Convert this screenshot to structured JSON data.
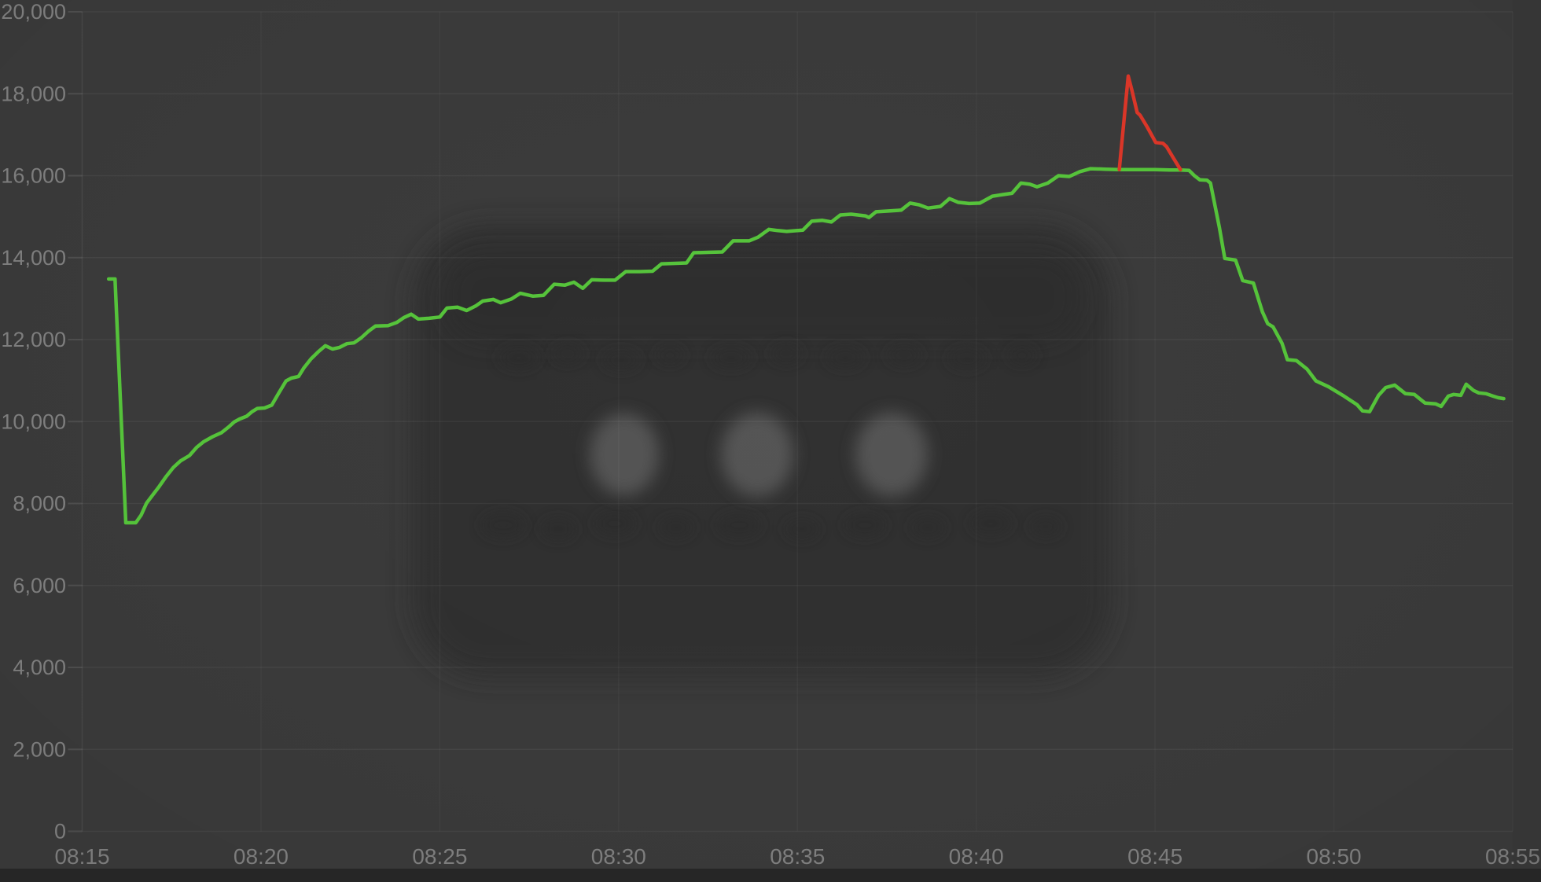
{
  "chart_data": {
    "type": "line",
    "title": "",
    "legend": "none",
    "grid": true,
    "x_axis": {
      "labels": [
        "08:15",
        "08:20",
        "08:25",
        "08:30",
        "08:35",
        "08:40",
        "08:45",
        "08:50",
        "08:55"
      ],
      "tick_minutes": [
        0,
        5,
        10,
        15,
        20,
        25,
        30,
        35,
        40
      ],
      "range_minutes": [
        0,
        40
      ]
    },
    "y_axis": {
      "tick_labels": [
        "0",
        "2,000",
        "4,000",
        "6,000",
        "8,000",
        "10,000",
        "12,000",
        "14,000",
        "16,000",
        "18,000",
        "20,000"
      ],
      "tick_values": [
        0,
        2000,
        4000,
        6000,
        8000,
        10000,
        12000,
        14000,
        16000,
        18000,
        20000
      ],
      "range": [
        0,
        20000
      ]
    },
    "series": [
      {
        "name": "primary-green",
        "color": "#55c33a",
        "points": [
          [
            0.74,
            13480
          ],
          [
            0.92,
            13480
          ],
          [
            1.22,
            7530
          ],
          [
            1.5,
            7530
          ],
          [
            1.65,
            7720
          ],
          [
            1.8,
            8010
          ],
          [
            2.0,
            8240
          ],
          [
            2.15,
            8410
          ],
          [
            2.35,
            8660
          ],
          [
            2.55,
            8880
          ],
          [
            2.75,
            9040
          ],
          [
            3.0,
            9170
          ],
          [
            3.2,
            9370
          ],
          [
            3.4,
            9510
          ],
          [
            3.65,
            9630
          ],
          [
            3.9,
            9730
          ],
          [
            4.1,
            9870
          ],
          [
            4.25,
            9990
          ],
          [
            4.4,
            10060
          ],
          [
            4.6,
            10130
          ],
          [
            4.75,
            10240
          ],
          [
            4.9,
            10320
          ],
          [
            5.1,
            10330
          ],
          [
            5.3,
            10400
          ],
          [
            5.5,
            10700
          ],
          [
            5.7,
            10990
          ],
          [
            5.85,
            11060
          ],
          [
            6.05,
            11100
          ],
          [
            6.2,
            11310
          ],
          [
            6.4,
            11530
          ],
          [
            6.6,
            11700
          ],
          [
            6.8,
            11850
          ],
          [
            7.0,
            11770
          ],
          [
            7.2,
            11810
          ],
          [
            7.4,
            11900
          ],
          [
            7.6,
            11920
          ],
          [
            7.8,
            12040
          ],
          [
            8.0,
            12200
          ],
          [
            8.2,
            12330
          ],
          [
            8.55,
            12340
          ],
          [
            8.8,
            12420
          ],
          [
            9.0,
            12540
          ],
          [
            9.2,
            12620
          ],
          [
            9.4,
            12500
          ],
          [
            9.7,
            12520
          ],
          [
            10.0,
            12550
          ],
          [
            10.2,
            12770
          ],
          [
            10.5,
            12790
          ],
          [
            10.75,
            12710
          ],
          [
            11.0,
            12820
          ],
          [
            11.2,
            12940
          ],
          [
            11.5,
            12980
          ],
          [
            11.7,
            12900
          ],
          [
            12.0,
            12990
          ],
          [
            12.25,
            13130
          ],
          [
            12.6,
            13060
          ],
          [
            12.9,
            13080
          ],
          [
            13.2,
            13350
          ],
          [
            13.5,
            13330
          ],
          [
            13.75,
            13400
          ],
          [
            14.0,
            13250
          ],
          [
            14.25,
            13460
          ],
          [
            14.6,
            13450
          ],
          [
            14.9,
            13450
          ],
          [
            15.2,
            13660
          ],
          [
            15.6,
            13660
          ],
          [
            15.95,
            13670
          ],
          [
            16.2,
            13850
          ],
          [
            16.6,
            13860
          ],
          [
            16.9,
            13870
          ],
          [
            17.1,
            14120
          ],
          [
            17.5,
            14130
          ],
          [
            17.9,
            14140
          ],
          [
            18.2,
            14410
          ],
          [
            18.65,
            14410
          ],
          [
            18.9,
            14500
          ],
          [
            19.2,
            14690
          ],
          [
            19.45,
            14660
          ],
          [
            19.7,
            14640
          ],
          [
            20.0,
            14660
          ],
          [
            20.15,
            14670
          ],
          [
            20.4,
            14890
          ],
          [
            20.7,
            14910
          ],
          [
            20.95,
            14870
          ],
          [
            21.2,
            15040
          ],
          [
            21.5,
            15060
          ],
          [
            21.9,
            15020
          ],
          [
            22.0,
            14980
          ],
          [
            22.2,
            15120
          ],
          [
            22.6,
            15140
          ],
          [
            22.9,
            15160
          ],
          [
            23.15,
            15330
          ],
          [
            23.4,
            15290
          ],
          [
            23.65,
            15210
          ],
          [
            24.0,
            15250
          ],
          [
            24.25,
            15440
          ],
          [
            24.5,
            15350
          ],
          [
            24.8,
            15320
          ],
          [
            25.1,
            15330
          ],
          [
            25.45,
            15500
          ],
          [
            25.75,
            15540
          ],
          [
            26.0,
            15570
          ],
          [
            26.25,
            15820
          ],
          [
            26.5,
            15790
          ],
          [
            26.7,
            15730
          ],
          [
            27.0,
            15820
          ],
          [
            27.3,
            16000
          ],
          [
            27.6,
            15980
          ],
          [
            27.9,
            16100
          ],
          [
            28.2,
            16170
          ],
          [
            28.6,
            16160
          ],
          [
            29.0,
            16150
          ],
          [
            29.5,
            16150
          ],
          [
            30.0,
            16150
          ],
          [
            30.4,
            16140
          ],
          [
            30.7,
            16140
          ],
          [
            30.95,
            16130
          ],
          [
            31.1,
            16000
          ],
          [
            31.25,
            15900
          ],
          [
            31.45,
            15890
          ],
          [
            31.55,
            15820
          ],
          [
            31.8,
            14730
          ],
          [
            31.95,
            13980
          ],
          [
            32.25,
            13940
          ],
          [
            32.45,
            13440
          ],
          [
            32.75,
            13380
          ],
          [
            33.0,
            12680
          ],
          [
            33.15,
            12390
          ],
          [
            33.3,
            12310
          ],
          [
            33.55,
            11910
          ],
          [
            33.7,
            11510
          ],
          [
            33.95,
            11490
          ],
          [
            34.25,
            11280
          ],
          [
            34.5,
            10990
          ],
          [
            34.85,
            10850
          ],
          [
            35.25,
            10640
          ],
          [
            35.65,
            10410
          ],
          [
            35.8,
            10260
          ],
          [
            36.0,
            10240
          ],
          [
            36.25,
            10640
          ],
          [
            36.45,
            10830
          ],
          [
            36.7,
            10890
          ],
          [
            37.0,
            10680
          ],
          [
            37.25,
            10660
          ],
          [
            37.55,
            10450
          ],
          [
            37.85,
            10430
          ],
          [
            38.0,
            10370
          ],
          [
            38.2,
            10620
          ],
          [
            38.35,
            10660
          ],
          [
            38.55,
            10640
          ],
          [
            38.7,
            10910
          ],
          [
            38.9,
            10760
          ],
          [
            39.05,
            10700
          ],
          [
            39.25,
            10680
          ],
          [
            39.45,
            10620
          ],
          [
            39.6,
            10580
          ],
          [
            39.75,
            10560
          ]
        ]
      },
      {
        "name": "spike-red",
        "color": "#da3628",
        "points": [
          [
            29.0,
            16150
          ],
          [
            29.25,
            18430
          ],
          [
            29.35,
            18090
          ],
          [
            29.5,
            17540
          ],
          [
            29.58,
            17480
          ],
          [
            29.78,
            17190
          ],
          [
            30.02,
            16810
          ],
          [
            30.22,
            16790
          ],
          [
            30.32,
            16710
          ],
          [
            30.52,
            16420
          ],
          [
            30.71,
            16150
          ]
        ]
      }
    ]
  },
  "colors": {
    "background": "#3a3a3a",
    "grid_line": "rgba(255,255,255,0.05)",
    "grid_line_vertical": "rgba(255,255,255,0.035)",
    "axis_line": "rgba(255,255,255,0.07)",
    "tick_dash": "rgba(255,255,255,0.10)",
    "tick_label": "#7f7f7f",
    "series_green": "#55c33a",
    "series_red": "#da3628",
    "bottom_strip": "#262626",
    "backdrop_rect": "#2d2d2d",
    "backdrop_band": "#292929",
    "backdrop_dot": "#5a5a5a",
    "backdrop_smudge": "#2a2a2a"
  }
}
